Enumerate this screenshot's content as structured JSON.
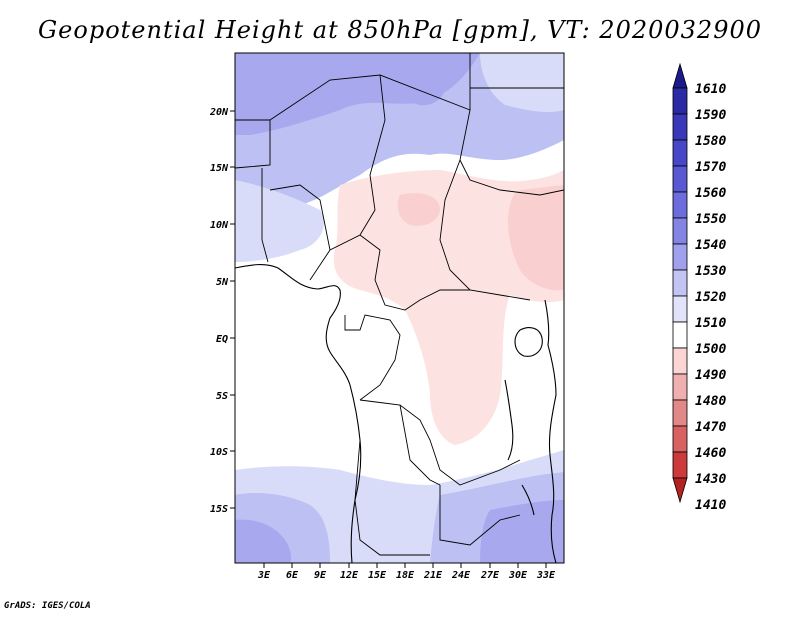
{
  "title": "Geopotential Height at 850hPa [gpm], VT: 2020032900",
  "credit": "GrADS: IGES/COLA",
  "map": {
    "lat_labels": [
      "20N",
      "15N",
      "10N",
      "5N",
      "EQ",
      "5S",
      "10S",
      "15S"
    ],
    "lon_labels": [
      "3E",
      "6E",
      "9E",
      "12E",
      "15E",
      "18E",
      "21E",
      "24E",
      "27E",
      "30E",
      "33E"
    ],
    "colors": {
      "ocean_blue": "#d8dcf8",
      "light_blue": "#bcc0f2",
      "mid_blue": "#a8a8ee",
      "deep_blue": "#9890ea",
      "light_red": "#fde2e2",
      "mid_red": "#f9cfcf"
    }
  },
  "colorbar": {
    "labels": [
      "1610",
      "1590",
      "1580",
      "1570",
      "1560",
      "1550",
      "1540",
      "1530",
      "1520",
      "1510",
      "1500",
      "1490",
      "1480",
      "1470",
      "1460",
      "1430",
      "1410"
    ],
    "colors": [
      "#1a1a8c",
      "#2a2aa6",
      "#3838b8",
      "#4646c8",
      "#5858d2",
      "#6c6cdc",
      "#8484e4",
      "#a0a0ec",
      "#c4c4f4",
      "#e2e2fa",
      "#ffffff",
      "#fbd4d4",
      "#f1b0b0",
      "#e38888",
      "#d86262",
      "#cc3a3a",
      "#b42222"
    ]
  }
}
